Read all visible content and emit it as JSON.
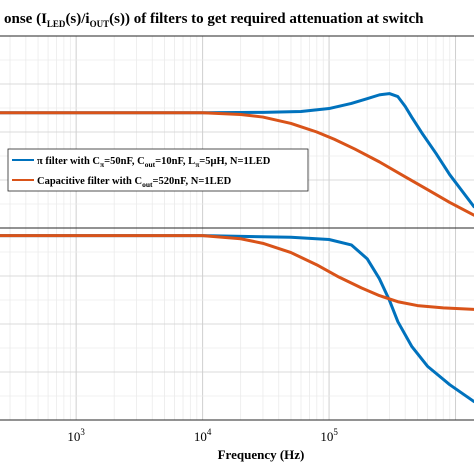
{
  "chart_data": [
    {
      "type": "line",
      "title": "onse (I_LED(s)/i_OUT(s)) of filters to get required attenuation at switch",
      "title_parts": {
        "t1": "onse (I",
        "t2": "LED",
        "t3": "(s)/i",
        "t4": "OUT",
        "t5": "(s)) of filters to get required attenuation at switch"
      },
      "xscale": "log",
      "xlim": [
        250,
        1400000
      ],
      "ylim": [
        -2.7,
        1.8
      ],
      "yticks": [
        -2,
        -1,
        0,
        1
      ],
      "grid": true,
      "legend_placement": "middle-left",
      "legend": {
        "entry1": {
          "a": "π filter with C",
          "b": "π",
          "c": "=50nF, C",
          "d": "out",
          "e": "=10nF, L",
          "f": "π",
          "g": "=5μH, N=1LED"
        },
        "entry2": {
          "a": "Capacitive filter with C",
          "b": "out",
          "c": "=520nF, N=1LED"
        }
      },
      "series": [
        {
          "color": "#0072BD",
          "points": [
            [
              250,
              0
            ],
            [
              10000,
              0
            ],
            [
              30000,
              0.01
            ],
            [
              60000,
              0.03
            ],
            [
              100000,
              0.1
            ],
            [
              150000,
              0.22
            ],
            [
              200000,
              0.33
            ],
            [
              250000,
              0.42
            ],
            [
              300000,
              0.45
            ],
            [
              350000,
              0.38
            ],
            [
              400000,
              0.15
            ],
            [
              450000,
              -0.1
            ],
            [
              550000,
              -0.5
            ],
            [
              700000,
              -0.95
            ],
            [
              900000,
              -1.45
            ],
            [
              1400000,
              -2.2
            ]
          ]
        },
        {
          "color": "#D95319",
          "points": [
            [
              250,
              0
            ],
            [
              10000,
              0
            ],
            [
              20000,
              -0.04
            ],
            [
              30000,
              -0.1
            ],
            [
              50000,
              -0.25
            ],
            [
              80000,
              -0.45
            ],
            [
              110000,
              -0.62
            ],
            [
              160000,
              -0.85
            ],
            [
              250000,
              -1.15
            ],
            [
              400000,
              -1.5
            ],
            [
              600000,
              -1.8
            ],
            [
              900000,
              -2.1
            ],
            [
              1400000,
              -2.4
            ]
          ]
        }
      ]
    },
    {
      "type": "line",
      "xlabel": "Frequency  (Hz)",
      "xscale": "log",
      "xlim": [
        250,
        1400000
      ],
      "ylim": [
        -120,
        5
      ],
      "xticks": [
        {
          "value": 1000,
          "base": "10",
          "exp": "3"
        },
        {
          "value": 10000,
          "base": "10",
          "exp": "4"
        },
        {
          "value": 100000,
          "base": "10",
          "exp": "5"
        }
      ],
      "grid": true,
      "series": [
        {
          "color": "#0072BD",
          "points": [
            [
              250,
              0
            ],
            [
              10000,
              0
            ],
            [
              50000,
              -1
            ],
            [
              100000,
              -2.5
            ],
            [
              150000,
              -6
            ],
            [
              200000,
              -15
            ],
            [
              250000,
              -28
            ],
            [
              300000,
              -42
            ],
            [
              350000,
              -56
            ],
            [
              450000,
              -72
            ],
            [
              600000,
              -85
            ],
            [
              900000,
              -97
            ],
            [
              1400000,
              -108
            ]
          ]
        },
        {
          "color": "#D95319",
          "points": [
            [
              250,
              0
            ],
            [
              10000,
              0
            ],
            [
              20000,
              -2
            ],
            [
              30000,
              -5
            ],
            [
              50000,
              -11
            ],
            [
              80000,
              -19
            ],
            [
              120000,
              -27
            ],
            [
              180000,
              -34
            ],
            [
              250000,
              -39
            ],
            [
              350000,
              -43
            ],
            [
              500000,
              -45.5
            ],
            [
              800000,
              -47
            ],
            [
              1400000,
              -48
            ]
          ]
        }
      ]
    }
  ]
}
